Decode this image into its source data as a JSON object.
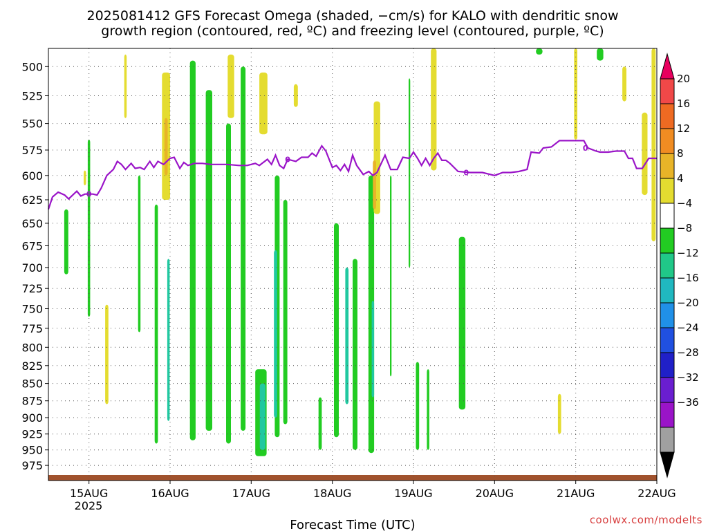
{
  "chart_data": {
    "type": "heatmap",
    "title_lines": [
      "2025081412 GFS Forecast Omega (shaded, −cm/s) for KALO with dendritic snow",
      "growth region (contoured, red, ºC) and freezing level (contoured, purple, ºC)"
    ],
    "xlabel": "Forecast Time (UTC)",
    "x_ticks": [
      "15AUG",
      "16AUG",
      "17AUG",
      "18AUG",
      "19AUG",
      "20AUG",
      "21AUG",
      "22AUG"
    ],
    "x_year": "2025",
    "x_range_days": [
      14.5,
      22.0
    ],
    "y_ticks": [
      500,
      525,
      550,
      575,
      600,
      625,
      650,
      675,
      700,
      725,
      750,
      775,
      800,
      825,
      850,
      875,
      900,
      925,
      950,
      975
    ],
    "y_range_hpa": [
      1000,
      485
    ],
    "y_scale": "log-pressure",
    "grid": true,
    "freezing_level_label": "0",
    "freezing_level": [
      [
        14.5,
        635
      ],
      [
        14.55,
        622
      ],
      [
        14.62,
        617
      ],
      [
        14.7,
        620
      ],
      [
        14.75,
        624
      ],
      [
        14.8,
        620
      ],
      [
        14.85,
        616
      ],
      [
        14.9,
        621
      ],
      [
        14.95,
        619
      ],
      [
        15.0,
        619
      ],
      [
        15.05,
        619
      ],
      [
        15.1,
        620
      ],
      [
        15.15,
        613
      ],
      [
        15.22,
        600
      ],
      [
        15.3,
        594
      ],
      [
        15.35,
        586
      ],
      [
        15.4,
        589
      ],
      [
        15.45,
        594
      ],
      [
        15.52,
        588
      ],
      [
        15.57,
        593
      ],
      [
        15.63,
        592
      ],
      [
        15.68,
        594
      ],
      [
        15.75,
        586
      ],
      [
        15.8,
        592
      ],
      [
        15.85,
        586
      ],
      [
        15.92,
        589
      ],
      [
        16.0,
        583
      ],
      [
        16.05,
        582
      ],
      [
        16.12,
        593
      ],
      [
        16.17,
        587
      ],
      [
        16.22,
        590
      ],
      [
        16.3,
        588
      ],
      [
        16.4,
        588
      ],
      [
        16.5,
        589
      ],
      [
        16.7,
        589
      ],
      [
        16.85,
        590
      ],
      [
        16.95,
        590
      ],
      [
        17.05,
        588
      ],
      [
        17.1,
        590
      ],
      [
        17.2,
        584
      ],
      [
        17.25,
        589
      ],
      [
        17.3,
        580
      ],
      [
        17.35,
        590
      ],
      [
        17.4,
        593
      ],
      [
        17.45,
        584
      ],
      [
        17.55,
        586
      ],
      [
        17.62,
        582
      ],
      [
        17.7,
        582
      ],
      [
        17.75,
        578
      ],
      [
        17.8,
        581
      ],
      [
        17.87,
        571
      ],
      [
        17.92,
        576
      ],
      [
        18.0,
        592
      ],
      [
        18.05,
        590
      ],
      [
        18.1,
        595
      ],
      [
        18.15,
        589
      ],
      [
        18.2,
        596
      ],
      [
        18.25,
        580
      ],
      [
        18.3,
        590
      ],
      [
        18.38,
        599
      ],
      [
        18.45,
        596
      ],
      [
        18.5,
        600
      ],
      [
        18.55,
        597
      ],
      [
        18.65,
        580
      ],
      [
        18.72,
        594
      ],
      [
        18.8,
        594
      ],
      [
        18.87,
        582
      ],
      [
        18.95,
        583
      ],
      [
        19.0,
        577
      ],
      [
        19.05,
        583
      ],
      [
        19.1,
        590
      ],
      [
        19.15,
        583
      ],
      [
        19.2,
        590
      ],
      [
        19.25,
        583
      ],
      [
        19.3,
        578
      ],
      [
        19.35,
        585
      ],
      [
        19.4,
        585
      ],
      [
        19.45,
        588
      ],
      [
        19.55,
        596
      ],
      [
        19.7,
        597
      ],
      [
        19.85,
        597
      ],
      [
        20.0,
        600
      ],
      [
        20.1,
        597
      ],
      [
        20.2,
        597
      ],
      [
        20.3,
        596
      ],
      [
        20.4,
        594
      ],
      [
        20.45,
        577
      ],
      [
        20.55,
        578
      ],
      [
        20.6,
        573
      ],
      [
        20.7,
        572
      ],
      [
        20.8,
        566
      ],
      [
        20.9,
        566
      ],
      [
        21.0,
        566
      ],
      [
        21.1,
        566
      ],
      [
        21.15,
        573
      ],
      [
        21.25,
        576
      ],
      [
        21.3,
        577
      ],
      [
        21.4,
        577
      ],
      [
        21.5,
        576
      ],
      [
        21.6,
        576
      ],
      [
        21.65,
        583
      ],
      [
        21.7,
        583
      ],
      [
        21.75,
        593
      ],
      [
        21.82,
        593
      ],
      [
        21.9,
        583
      ],
      [
        22.0,
        583
      ]
    ],
    "omega_cells": [
      {
        "sign": "up",
        "value": -8,
        "day": 14.72,
        "p_top": 635,
        "p_bot": 708,
        "width": 0.05
      },
      {
        "sign": "up",
        "value": -8,
        "day": 15.0,
        "p_top": 565,
        "p_bot": 760,
        "width": 0.03
      },
      {
        "sign": "up",
        "value": -8,
        "day": 15.62,
        "p_top": 600,
        "p_bot": 780,
        "width": 0.03
      },
      {
        "sign": "up",
        "value": -8,
        "day": 15.83,
        "p_top": 630,
        "p_bot": 940,
        "width": 0.04
      },
      {
        "sign": "up",
        "value": -12,
        "day": 15.98,
        "p_top": 690,
        "p_bot": 905,
        "width": 0.03
      },
      {
        "sign": "up",
        "value": -8,
        "day": 16.28,
        "p_top": 495,
        "p_bot": 935,
        "width": 0.07
      },
      {
        "sign": "up",
        "value": -8,
        "day": 16.48,
        "p_top": 520,
        "p_bot": 920,
        "width": 0.08
      },
      {
        "sign": "up",
        "value": -8,
        "day": 16.72,
        "p_top": 550,
        "p_bot": 940,
        "width": 0.06
      },
      {
        "sign": "up",
        "value": -8,
        "day": 16.9,
        "p_top": 500,
        "p_bot": 920,
        "width": 0.06
      },
      {
        "sign": "up",
        "value": -8,
        "day": 17.12,
        "p_top": 830,
        "p_bot": 960,
        "width": 0.14
      },
      {
        "sign": "up",
        "value": -12,
        "day": 17.14,
        "p_top": 850,
        "p_bot": 950,
        "width": 0.07
      },
      {
        "sign": "up",
        "value": -8,
        "day": 17.32,
        "p_top": 600,
        "p_bot": 930,
        "width": 0.06
      },
      {
        "sign": "up",
        "value": -8,
        "day": 17.42,
        "p_top": 625,
        "p_bot": 910,
        "width": 0.05
      },
      {
        "sign": "up",
        "value": -12,
        "day": 17.3,
        "p_top": 680,
        "p_bot": 900,
        "width": 0.04
      },
      {
        "sign": "up",
        "value": -8,
        "day": 17.85,
        "p_top": 870,
        "p_bot": 950,
        "width": 0.04
      },
      {
        "sign": "up",
        "value": -8,
        "day": 18.05,
        "p_top": 650,
        "p_bot": 930,
        "width": 0.06
      },
      {
        "sign": "up",
        "value": -12,
        "day": 18.18,
        "p_top": 700,
        "p_bot": 880,
        "width": 0.04
      },
      {
        "sign": "up",
        "value": -8,
        "day": 18.28,
        "p_top": 690,
        "p_bot": 950,
        "width": 0.06
      },
      {
        "sign": "up",
        "value": -8,
        "day": 18.48,
        "p_top": 600,
        "p_bot": 955,
        "width": 0.07
      },
      {
        "sign": "up",
        "value": -12,
        "day": 18.5,
        "p_top": 740,
        "p_bot": 870,
        "width": 0.03
      },
      {
        "sign": "up",
        "value": -8,
        "day": 18.72,
        "p_top": 600,
        "p_bot": 840,
        "width": 0.02
      },
      {
        "sign": "up",
        "value": -8,
        "day": 18.95,
        "p_top": 510,
        "p_bot": 700,
        "width": 0.02
      },
      {
        "sign": "up",
        "value": -8,
        "day": 19.05,
        "p_top": 820,
        "p_bot": 950,
        "width": 0.04
      },
      {
        "sign": "up",
        "value": -8,
        "day": 19.18,
        "p_top": 830,
        "p_bot": 950,
        "width": 0.03
      },
      {
        "sign": "up",
        "value": -8,
        "day": 19.6,
        "p_top": 665,
        "p_bot": 888,
        "width": 0.08
      },
      {
        "sign": "up",
        "value": -8,
        "day": 20.55,
        "p_top": 485,
        "p_bot": 490,
        "width": 0.08
      },
      {
        "sign": "up",
        "value": -8,
        "day": 21.3,
        "p_top": 485,
        "p_bot": 495,
        "width": 0.08
      },
      {
        "sign": "down",
        "value": 4,
        "day": 14.95,
        "p_top": 595,
        "p_bot": 610,
        "width": 0.03
      },
      {
        "sign": "down",
        "value": 4,
        "day": 15.22,
        "p_top": 745,
        "p_bot": 880,
        "width": 0.04
      },
      {
        "sign": "down",
        "value": 4,
        "day": 15.45,
        "p_top": 490,
        "p_bot": 545,
        "width": 0.03
      },
      {
        "sign": "down",
        "value": 4,
        "day": 15.95,
        "p_top": 505,
        "p_bot": 625,
        "width": 0.1
      },
      {
        "sign": "down",
        "value": 8,
        "day": 15.95,
        "p_top": 545,
        "p_bot": 600,
        "width": 0.04
      },
      {
        "sign": "down",
        "value": 4,
        "day": 16.75,
        "p_top": 490,
        "p_bot": 545,
        "width": 0.08
      },
      {
        "sign": "down",
        "value": 4,
        "day": 17.15,
        "p_top": 505,
        "p_bot": 560,
        "width": 0.1
      },
      {
        "sign": "down",
        "value": 4,
        "day": 17.55,
        "p_top": 515,
        "p_bot": 535,
        "width": 0.05
      },
      {
        "sign": "down",
        "value": 4,
        "day": 18.55,
        "p_top": 530,
        "p_bot": 640,
        "width": 0.08
      },
      {
        "sign": "down",
        "value": 8,
        "day": 18.52,
        "p_top": 585,
        "p_bot": 635,
        "width": 0.04
      },
      {
        "sign": "down",
        "value": 4,
        "day": 19.25,
        "p_top": 485,
        "p_bot": 595,
        "width": 0.07
      },
      {
        "sign": "down",
        "value": 4,
        "day": 21.0,
        "p_top": 485,
        "p_bot": 565,
        "width": 0.04
      },
      {
        "sign": "down",
        "value": 4,
        "day": 21.6,
        "p_top": 500,
        "p_bot": 530,
        "width": 0.05
      },
      {
        "sign": "down",
        "value": 4,
        "day": 21.85,
        "p_top": 540,
        "p_bot": 620,
        "width": 0.07
      },
      {
        "sign": "down",
        "value": 4,
        "day": 21.96,
        "p_top": 485,
        "p_bot": 670,
        "width": 0.05
      },
      {
        "sign": "down",
        "value": 4,
        "day": 20.8,
        "p_top": 865,
        "p_bot": 925,
        "width": 0.04
      }
    ],
    "colorbar": {
      "labels": [
        "20",
        "16",
        "12",
        "8",
        "4",
        "−4",
        "−8",
        "−12",
        "−16",
        "−20",
        "−24",
        "−28",
        "−32",
        "−36"
      ],
      "colors": [
        "#e8005e",
        "#f04848",
        "#ee6a22",
        "#f08c22",
        "#e8b428",
        "#e4dc30",
        "#ffffff",
        "#22cc22",
        "#20c888",
        "#20b8c0",
        "#2090e8",
        "#2050e0",
        "#2020c8",
        "#6a1ed0",
        "#9a14c8",
        "#a0a0a0",
        "#000000"
      ]
    }
  },
  "credit": "coolwx.com/modelts",
  "colors": {
    "freezing_level": "#9a14c8",
    "ground": "#a0522d",
    "grid": "#555555",
    "credit": "#d84040"
  }
}
